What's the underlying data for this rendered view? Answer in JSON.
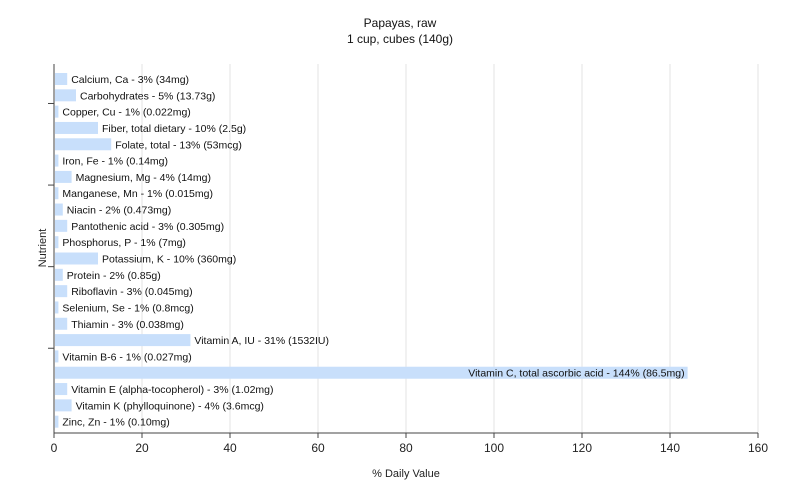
{
  "chart_data": {
    "type": "bar",
    "orientation": "horizontal",
    "title": "Papayas, raw",
    "subtitle": "1 cup, cubes (140g)",
    "xlabel": "% Daily Value",
    "ylabel": "Nutrient",
    "xlim": [
      0,
      160
    ],
    "xticks": [
      0,
      20,
      40,
      60,
      80,
      100,
      120,
      140,
      160
    ],
    "grid": true,
    "bar_color": "#c8dffb",
    "categories": [
      "Calcium, Ca",
      "Carbohydrates",
      "Copper, Cu",
      "Fiber, total dietary",
      "Folate, total",
      "Iron, Fe",
      "Magnesium, Mg",
      "Manganese, Mn",
      "Niacin",
      "Pantothenic acid",
      "Phosphorus, P",
      "Potassium, K",
      "Protein",
      "Riboflavin",
      "Selenium, Se",
      "Thiamin",
      "Vitamin A, IU",
      "Vitamin B-6",
      "Vitamin C, total ascorbic acid",
      "Vitamin E (alpha-tocopherol)",
      "Vitamin K (phylloquinone)",
      "Zinc, Zn"
    ],
    "values": [
      3,
      5,
      1,
      10,
      13,
      1,
      4,
      1,
      2,
      3,
      1,
      10,
      2,
      3,
      1,
      3,
      31,
      1,
      144,
      3,
      4,
      1
    ],
    "amounts": [
      "34mg",
      "13.73g",
      "0.022mg",
      "2.5g",
      "53mcg",
      "0.14mg",
      "14mg",
      "0.015mg",
      "0.473mg",
      "0.305mg",
      "7mg",
      "360mg",
      "0.85g",
      "0.045mg",
      "0.8mcg",
      "0.038mg",
      "1532IU",
      "0.027mg",
      "86.5mg",
      "1.02mg",
      "3.6mcg",
      "0.10mg"
    ],
    "labels": [
      "Calcium, Ca - 3% (34mg)",
      "Carbohydrates - 5% (13.73g)",
      "Copper, Cu - 1% (0.022mg)",
      "Fiber, total dietary - 10% (2.5g)",
      "Folate, total - 13% (53mcg)",
      "Iron, Fe - 1% (0.14mg)",
      "Magnesium, Mg - 4% (14mg)",
      "Manganese, Mn - 1% (0.015mg)",
      "Niacin - 2% (0.473mg)",
      "Pantothenic acid - 3% (0.305mg)",
      "Phosphorus, P - 1% (7mg)",
      "Potassium, K - 10% (360mg)",
      "Protein - 2% (0.85g)",
      "Riboflavin - 3% (0.045mg)",
      "Selenium, Se - 1% (0.8mcg)",
      "Thiamin - 3% (0.038mg)",
      "Vitamin A, IU - 31% (1532IU)",
      "Vitamin B-6 - 1% (0.027mg)",
      "Vitamin C, total ascorbic acid - 144% (86.5mg)",
      "Vitamin E (alpha-tocopherol) - 3% (1.02mg)",
      "Vitamin K (phylloquinone) - 4% (3.6mcg)",
      "Zinc, Zn - 1% (0.10mg)"
    ]
  }
}
